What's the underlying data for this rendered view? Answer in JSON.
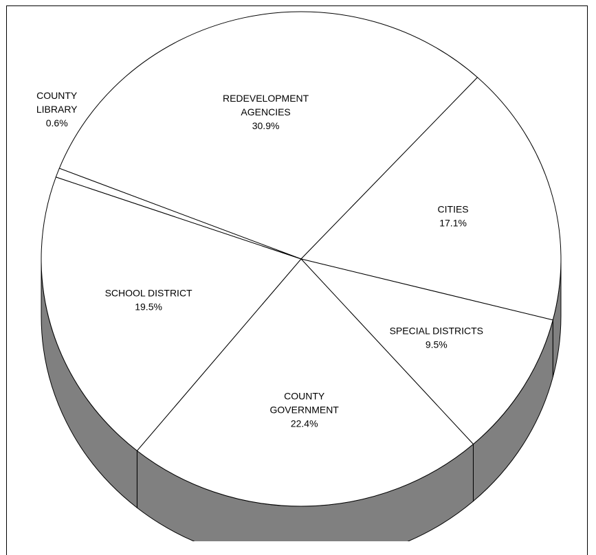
{
  "chart_data": {
    "type": "pie",
    "style": "3d",
    "colors": {
      "top": "#ffffff",
      "side": "#808080",
      "stroke": "#000000"
    },
    "slices": [
      {
        "label_lines": [
          "REDEVELOPMENT",
          "AGENCIES"
        ],
        "percent_label": "30.9%",
        "value": 30.9
      },
      {
        "label_lines": [
          "CITIES"
        ],
        "percent_label": "17.1%",
        "value": 17.1
      },
      {
        "label_lines": [
          "SPECIAL DISTRICTS"
        ],
        "percent_label": "9.5%",
        "value": 9.5
      },
      {
        "label_lines": [
          "COUNTY",
          "GOVERNMENT"
        ],
        "percent_label": "22.4%",
        "value": 22.4
      },
      {
        "label_lines": [
          "SCHOOL DISTRICT"
        ],
        "percent_label": "19.5%",
        "value": 19.5
      },
      {
        "label_lines": [
          "COUNTY",
          "LIBRARY"
        ],
        "percent_label": "0.6%",
        "value": 0.6
      }
    ]
  }
}
